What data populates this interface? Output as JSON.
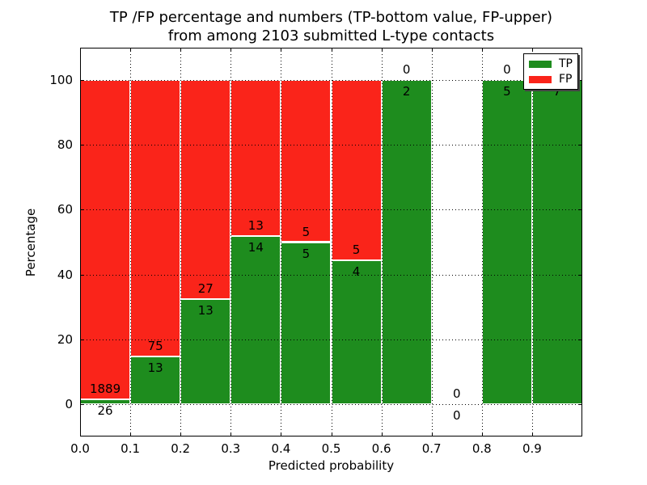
{
  "title": {
    "line1": "TP /FP percentage and numbers (TP-bottom value, FP-upper)",
    "line2": "from among 2103 submitted L-type contacts"
  },
  "chart_data": {
    "type": "bar",
    "stacked": true,
    "normalized": "percent",
    "title": "TP /FP percentage and numbers (TP-bottom value, FP-upper) from among 2103 submitted L-type contacts",
    "xlabel": "Predicted probability",
    "ylabel": "Percentage",
    "total_contacts": 2103,
    "bin_edges": [
      0.0,
      0.1,
      0.2,
      0.3,
      0.4,
      0.5,
      0.6,
      0.7,
      0.8,
      0.9,
      1.0
    ],
    "xtick_labels": [
      "0.0",
      "0.1",
      "0.2",
      "0.3",
      "0.4",
      "0.5",
      "0.6",
      "0.7",
      "0.8",
      "0.9"
    ],
    "ytick_values": [
      0,
      20,
      40,
      60,
      80,
      100
    ],
    "ytick_labels": [
      "0",
      "20",
      "40",
      "60",
      "80",
      "100"
    ],
    "xlim": [
      0.0,
      1.0
    ],
    "ylim": [
      -10,
      110
    ],
    "grid": true,
    "legend_position": "upper right",
    "series": [
      {
        "name": "TP",
        "color": "#1e8c1e",
        "values": [
          26,
          13,
          13,
          14,
          5,
          4,
          2,
          0,
          5,
          7
        ]
      },
      {
        "name": "FP",
        "color": "#fa241a",
        "values": [
          1889,
          75,
          27,
          13,
          5,
          5,
          0,
          0,
          0,
          0
        ]
      }
    ],
    "tp_percent": [
      1.36,
      14.77,
      32.5,
      51.85,
      50.0,
      44.44,
      100.0,
      null,
      100.0,
      100.0
    ]
  },
  "colors": {
    "tp": "#1e8c1e",
    "fp": "#fa241a",
    "grid": "#000000",
    "frame": "#000000",
    "background": "#ffffff",
    "bar_edge": "#ffffff"
  }
}
